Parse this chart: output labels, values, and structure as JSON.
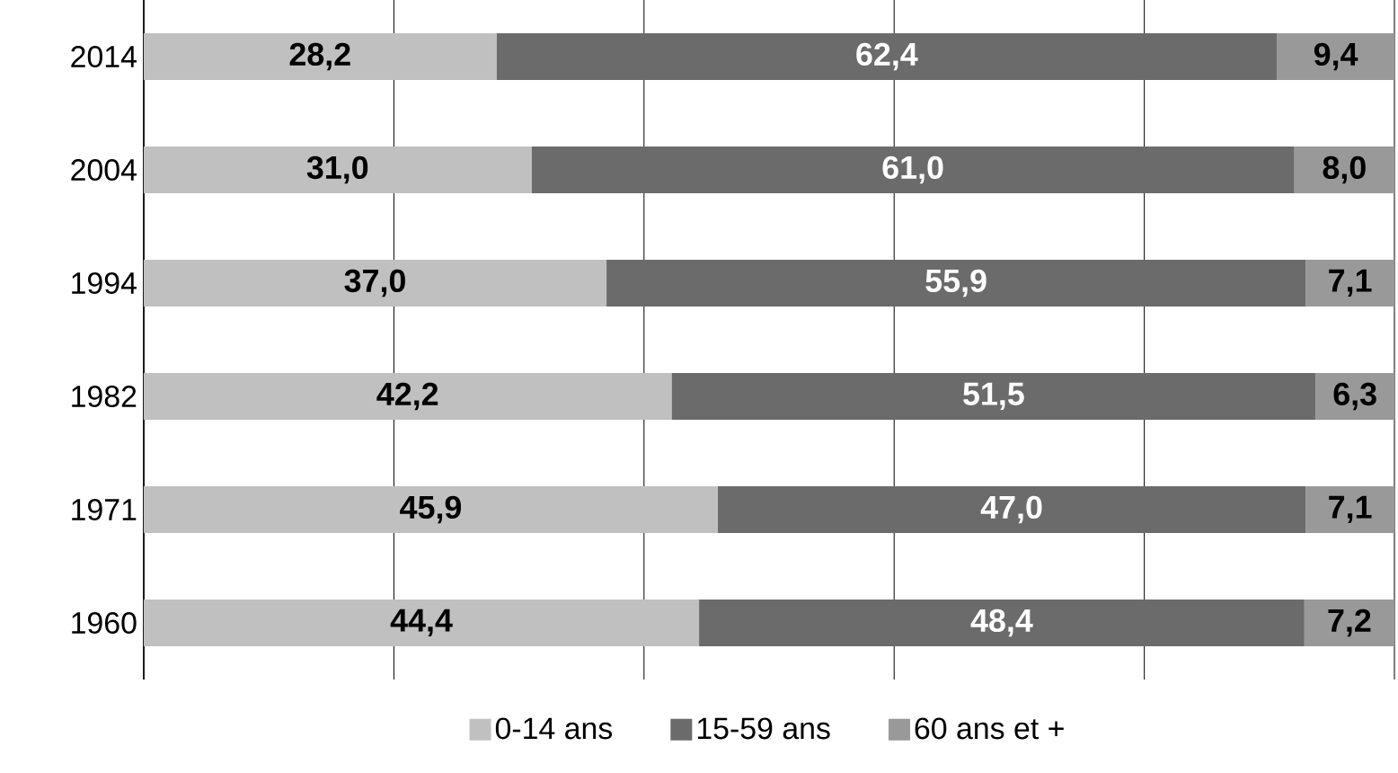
{
  "chart_data": {
    "type": "bar",
    "orientation": "horizontal",
    "stacked": true,
    "categories": [
      "2014",
      "2004",
      "1994",
      "1982",
      "1971",
      "1960"
    ],
    "series": [
      {
        "name": "0-14 ans",
        "color": "#c0c0c0",
        "values": [
          28.2,
          31.0,
          37.0,
          42.2,
          45.9,
          44.4
        ],
        "value_labels": [
          "28,2",
          "31,0",
          "37,0",
          "42,2",
          "45,9",
          "44,4"
        ]
      },
      {
        "name": "15-59 ans",
        "color": "#6b6b6b",
        "values": [
          62.4,
          61.0,
          55.9,
          51.5,
          47.0,
          48.4
        ],
        "value_labels": [
          "62,4",
          "61,0",
          "55,9",
          "51,5",
          "47,0",
          "48,4"
        ]
      },
      {
        "name": "60 ans et +",
        "color": "#999999",
        "values": [
          9.4,
          8.0,
          7.1,
          6.3,
          7.1,
          7.2
        ],
        "value_labels": [
          "9,4",
          "8,0",
          "7,1",
          "6,3",
          "7,1",
          "7,2"
        ]
      }
    ],
    "xlim": [
      0,
      100
    ],
    "xticks": [
      {
        "value": 0,
        "label": null
      },
      {
        "value": 20,
        "label": null
      },
      {
        "value": 40,
        "label": null
      },
      {
        "value": 60,
        "label": null
      },
      {
        "value": 80,
        "label": null
      },
      {
        "value": 100,
        "label": null
      }
    ],
    "tick_labels": "y",
    "grid": "x",
    "legend": "bottom"
  }
}
